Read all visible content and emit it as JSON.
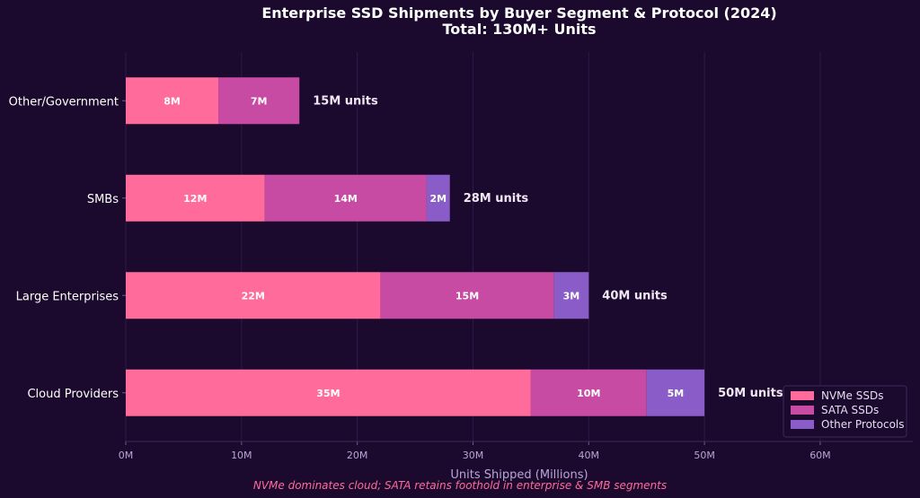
{
  "chart_data": {
    "type": "bar",
    "orientation": "horizontal",
    "stacked": true,
    "title": "Enterprise SSD Shipments by Buyer Segment & Protocol (2024)",
    "subtitle": "Total: 130M+ Units",
    "xlabel": "Units Shipped (Millions)",
    "footnote": "NVMe dominates cloud; SATA retains foothold in enterprise & SMB segments",
    "xlim": [
      0,
      68
    ],
    "xticks": [
      0,
      10,
      20,
      30,
      40,
      50,
      60
    ],
    "xtick_labels": [
      "0M",
      "10M",
      "20M",
      "30M",
      "40M",
      "50M",
      "60M"
    ],
    "categories": [
      "Cloud Providers",
      "Large Enterprises",
      "SMBs",
      "Other/Government"
    ],
    "series": [
      {
        "name": "NVMe SSDs",
        "color": "#ff6b9a",
        "values": [
          35,
          22,
          12,
          8
        ],
        "labels": [
          "35M",
          "22M",
          "12M",
          "8M"
        ]
      },
      {
        "name": "SATA SSDs",
        "color": "#c74ba3",
        "values": [
          10,
          15,
          14,
          7
        ],
        "labels": [
          "10M",
          "15M",
          "14M",
          "7M"
        ]
      },
      {
        "name": "Other Protocols",
        "color": "#8a5cc8",
        "values": [
          5,
          3,
          2,
          0
        ],
        "labels": [
          "5M",
          "3M",
          "2M",
          ""
        ]
      }
    ],
    "totals": [
      50,
      40,
      28,
      15
    ],
    "total_labels": [
      "50M units",
      "40M units",
      "28M units",
      "15M units"
    ],
    "grid": "x",
    "legend": "bottom-right"
  }
}
